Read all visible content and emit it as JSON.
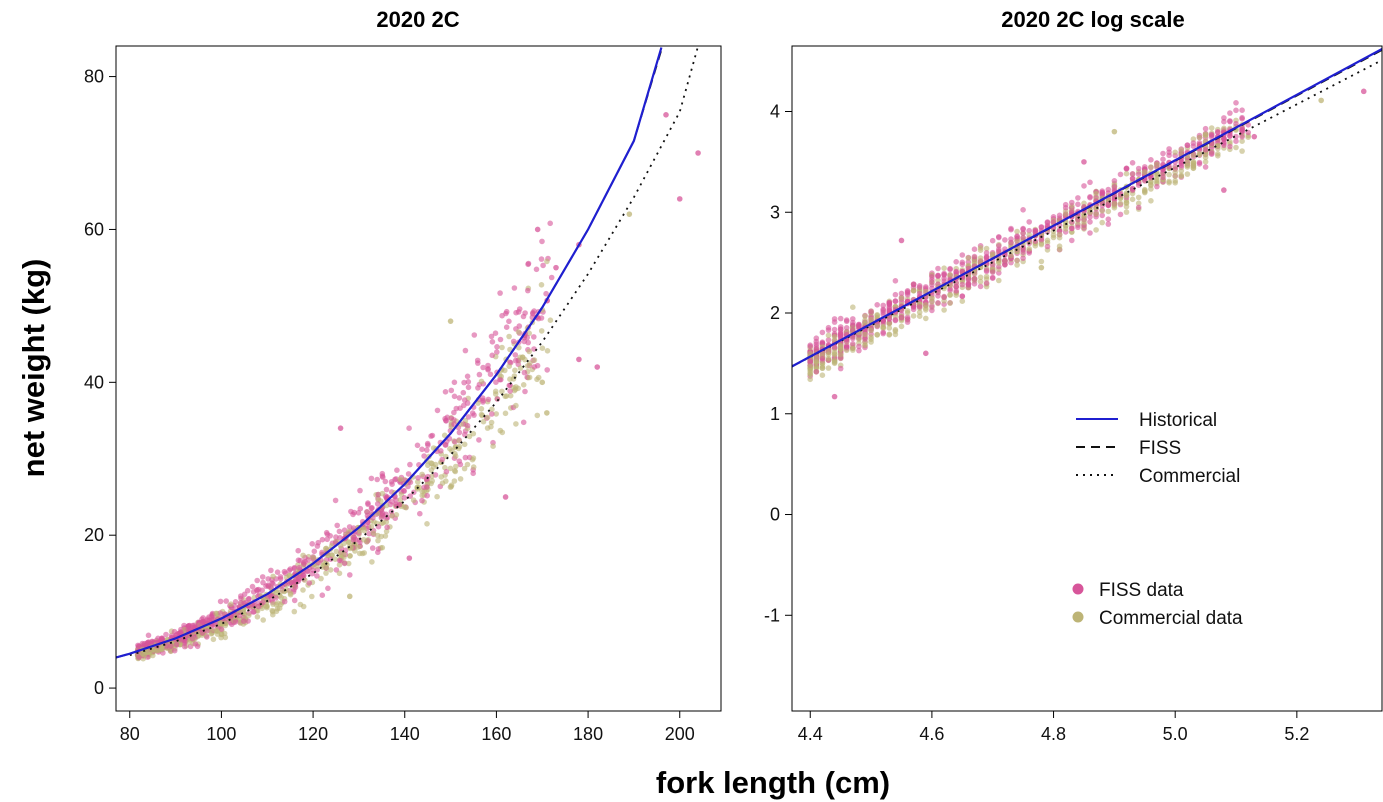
{
  "figure": {
    "xlabel": "fork length (cm)",
    "ylabel": "net weight (kg)"
  },
  "legend": {
    "lines": [
      {
        "label": "Historical",
        "style": "solid",
        "color": "#1f1fd0"
      },
      {
        "label": "FISS",
        "style": "dashed",
        "color": "#111111"
      },
      {
        "label": "Commercial",
        "style": "dotted",
        "color": "#111111"
      }
    ],
    "points": [
      {
        "label": "FISS data",
        "color": "#d7559a"
      },
      {
        "label": "Commercial data",
        "color": "#bdb476"
      }
    ]
  },
  "colors": {
    "historical": "#1f1fd0",
    "fiss": "#111111",
    "commercial": "#111111",
    "fiss_points": "#d7559a",
    "commercial_points": "#bdb476"
  },
  "chart_data": [
    {
      "type": "scatter",
      "title": "2020 2C",
      "xlabel": "fork length (cm)",
      "ylabel": "net weight (kg)",
      "xlim": [
        77,
        209
      ],
      "ylim": [
        -3,
        84
      ],
      "xticks": [
        80,
        100,
        120,
        140,
        160,
        180,
        200
      ],
      "yticks": [
        0,
        20,
        40,
        60,
        80
      ],
      "curves": [
        {
          "name": "Historical",
          "style": "solid",
          "x": [
            77,
            80,
            90,
            100,
            110,
            120,
            130,
            140,
            150,
            160,
            170,
            180,
            190,
            196
          ],
          "y": [
            4.0,
            4.5,
            6.5,
            9.1,
            12.3,
            16.3,
            21.0,
            26.7,
            33.3,
            41.0,
            49.8,
            60.0,
            71.6,
            83.8
          ]
        },
        {
          "name": "FISS",
          "style": "dashed",
          "x": [
            77,
            80,
            90,
            100,
            110,
            120,
            130,
            140,
            150,
            160,
            170,
            180,
            190,
            196
          ],
          "y": [
            4.0,
            4.5,
            6.5,
            9.1,
            12.3,
            16.3,
            21.0,
            26.7,
            33.3,
            41.0,
            49.8,
            60.0,
            71.6,
            83.5
          ]
        },
        {
          "name": "Commercial",
          "style": "dotted",
          "x": [
            80,
            90,
            100,
            110,
            120,
            130,
            140,
            150,
            160,
            170,
            180,
            190,
            200,
            204
          ],
          "y": [
            4.3,
            6.1,
            8.4,
            11.4,
            15.0,
            19.4,
            24.5,
            30.5,
            37.4,
            45.3,
            54.2,
            64.2,
            75.4,
            84.0
          ]
        }
      ],
      "outliers": [
        {
          "series": "FISS data",
          "x": 200,
          "y": 64
        },
        {
          "series": "FISS data",
          "x": 204,
          "y": 70
        },
        {
          "series": "FISS data",
          "x": 197,
          "y": 75
        },
        {
          "series": "FISS data",
          "x": 182,
          "y": 42
        },
        {
          "series": "FISS data",
          "x": 178,
          "y": 43
        },
        {
          "series": "FISS data",
          "x": 162,
          "y": 25
        },
        {
          "series": "FISS data",
          "x": 141,
          "y": 17
        },
        {
          "series": "FISS data",
          "x": 126,
          "y": 34
        },
        {
          "series": "FISS data",
          "x": 178,
          "y": 58
        },
        {
          "series": "FISS data",
          "x": 173,
          "y": 55
        },
        {
          "series": "FISS data",
          "x": 169,
          "y": 60
        },
        {
          "series": "Commercial data",
          "x": 189,
          "y": 62
        },
        {
          "series": "Commercial data",
          "x": 170,
          "y": 40
        },
        {
          "series": "Commercial data",
          "x": 150,
          "y": 48
        },
        {
          "series": "Commercial data",
          "x": 171,
          "y": 36
        },
        {
          "series": "Commercial data",
          "x": 128,
          "y": 12
        }
      ]
    },
    {
      "type": "scatter",
      "title": "2020 2C log scale",
      "xlabel": "fork length (cm)",
      "ylabel": "net weight (kg)",
      "xlim": [
        4.37,
        5.34
      ],
      "ylim": [
        -1.95,
        4.65
      ],
      "xticks": [
        4.4,
        4.6,
        4.8,
        5.0,
        5.2
      ],
      "xtick_labels": [
        "4.4",
        "4.6",
        "4.8",
        "5.0",
        "5.2"
      ],
      "yticks": [
        -1,
        0,
        1,
        2,
        3,
        4
      ],
      "curves": [
        {
          "name": "Historical",
          "style": "solid",
          "x": [
            4.37,
            5.34
          ],
          "y": [
            1.47,
            4.62
          ]
        },
        {
          "name": "FISS",
          "style": "dashed",
          "x": [
            4.37,
            5.34
          ],
          "y": [
            1.47,
            4.61
          ]
        },
        {
          "name": "Commercial",
          "style": "dotted",
          "x": [
            4.37,
            5.34
          ],
          "y": [
            1.47,
            4.51
          ]
        }
      ],
      "outliers": [
        {
          "series": "FISS data",
          "x": 5.31,
          "y": 4.2
        },
        {
          "series": "FISS data",
          "x": 5.13,
          "y": 3.75
        },
        {
          "series": "FISS data",
          "x": 5.08,
          "y": 3.22
        },
        {
          "series": "FISS data",
          "x": 4.59,
          "y": 1.6
        },
        {
          "series": "FISS data",
          "x": 4.44,
          "y": 1.17
        },
        {
          "series": "FISS data",
          "x": 4.55,
          "y": 2.72
        },
        {
          "series": "FISS data",
          "x": 4.85,
          "y": 3.5
        },
        {
          "series": "Commercial data",
          "x": 5.24,
          "y": 4.11
        },
        {
          "series": "Commercial data",
          "x": 4.9,
          "y": 3.8
        },
        {
          "series": "Commercial data",
          "x": 4.78,
          "y": 2.45
        }
      ]
    }
  ]
}
